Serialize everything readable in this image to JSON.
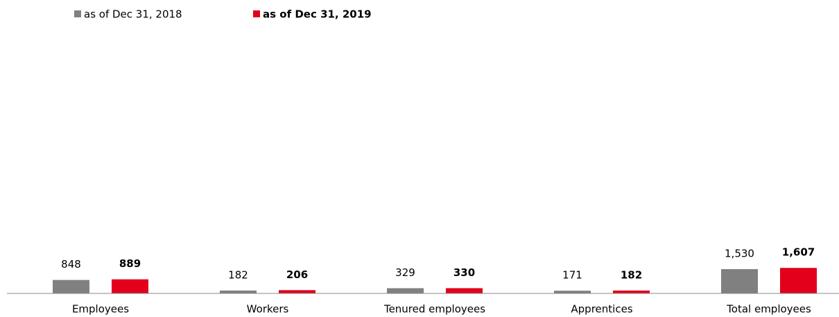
{
  "chart_data": {
    "type": "bar",
    "categories": [
      "Employees",
      "Workers",
      "Tenured employees",
      "Apprentices",
      "Total employees"
    ],
    "series": [
      {
        "name": "as of Dec 31, 2018",
        "color": "#808080",
        "values": [
          848,
          182,
          329,
          171,
          1530
        ],
        "value_labels": [
          "848",
          "182",
          "329",
          "171",
          "1,530"
        ]
      },
      {
        "name": "as of Dec 31, 2019",
        "color": "#e2001a",
        "values": [
          889,
          206,
          330,
          182,
          1607
        ],
        "value_labels": [
          "889",
          "206",
          "330",
          "182",
          "1,607"
        ]
      }
    ],
    "ylim": [
      0,
      16000
    ]
  }
}
